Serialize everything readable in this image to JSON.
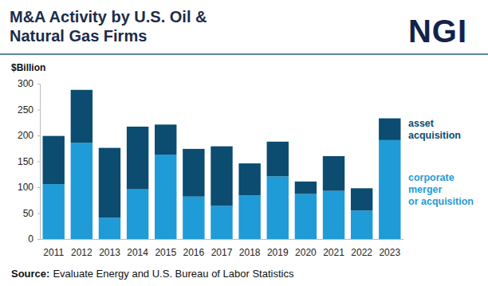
{
  "chart_data": {
    "type": "bar",
    "stacked": true,
    "legend": "right",
    "title": [
      "M&A Activity by U.S. Oil &",
      "Natural Gas Firms"
    ],
    "logo": "NGI",
    "unit_label": "$Billion",
    "source_label": "Source:",
    "source": "Evaluate Energy and U.S. Bureau of Labor Statistics",
    "categories": [
      "2011",
      "2012",
      "2013",
      "2014",
      "2015",
      "2016",
      "2017",
      "2018",
      "2019",
      "2020",
      "2021",
      "2022",
      "2023"
    ],
    "series": [
      {
        "name": "corporate\nmerger\nor acquisition",
        "color": "#1f9bd7",
        "values": [
          106,
          186,
          41,
          96,
          163,
          82,
          64,
          84,
          121,
          87,
          93,
          55,
          191
        ]
      },
      {
        "name": "asset\nacquisition",
        "color": "#0b4c70",
        "values": [
          93,
          102,
          135,
          121,
          58,
          92,
          115,
          62,
          67,
          24,
          67,
          43,
          42
        ]
      }
    ],
    "ylim": [
      0,
      300
    ],
    "yticks": [
      0,
      50,
      100,
      150,
      200,
      250,
      300
    ],
    "grid": false
  }
}
